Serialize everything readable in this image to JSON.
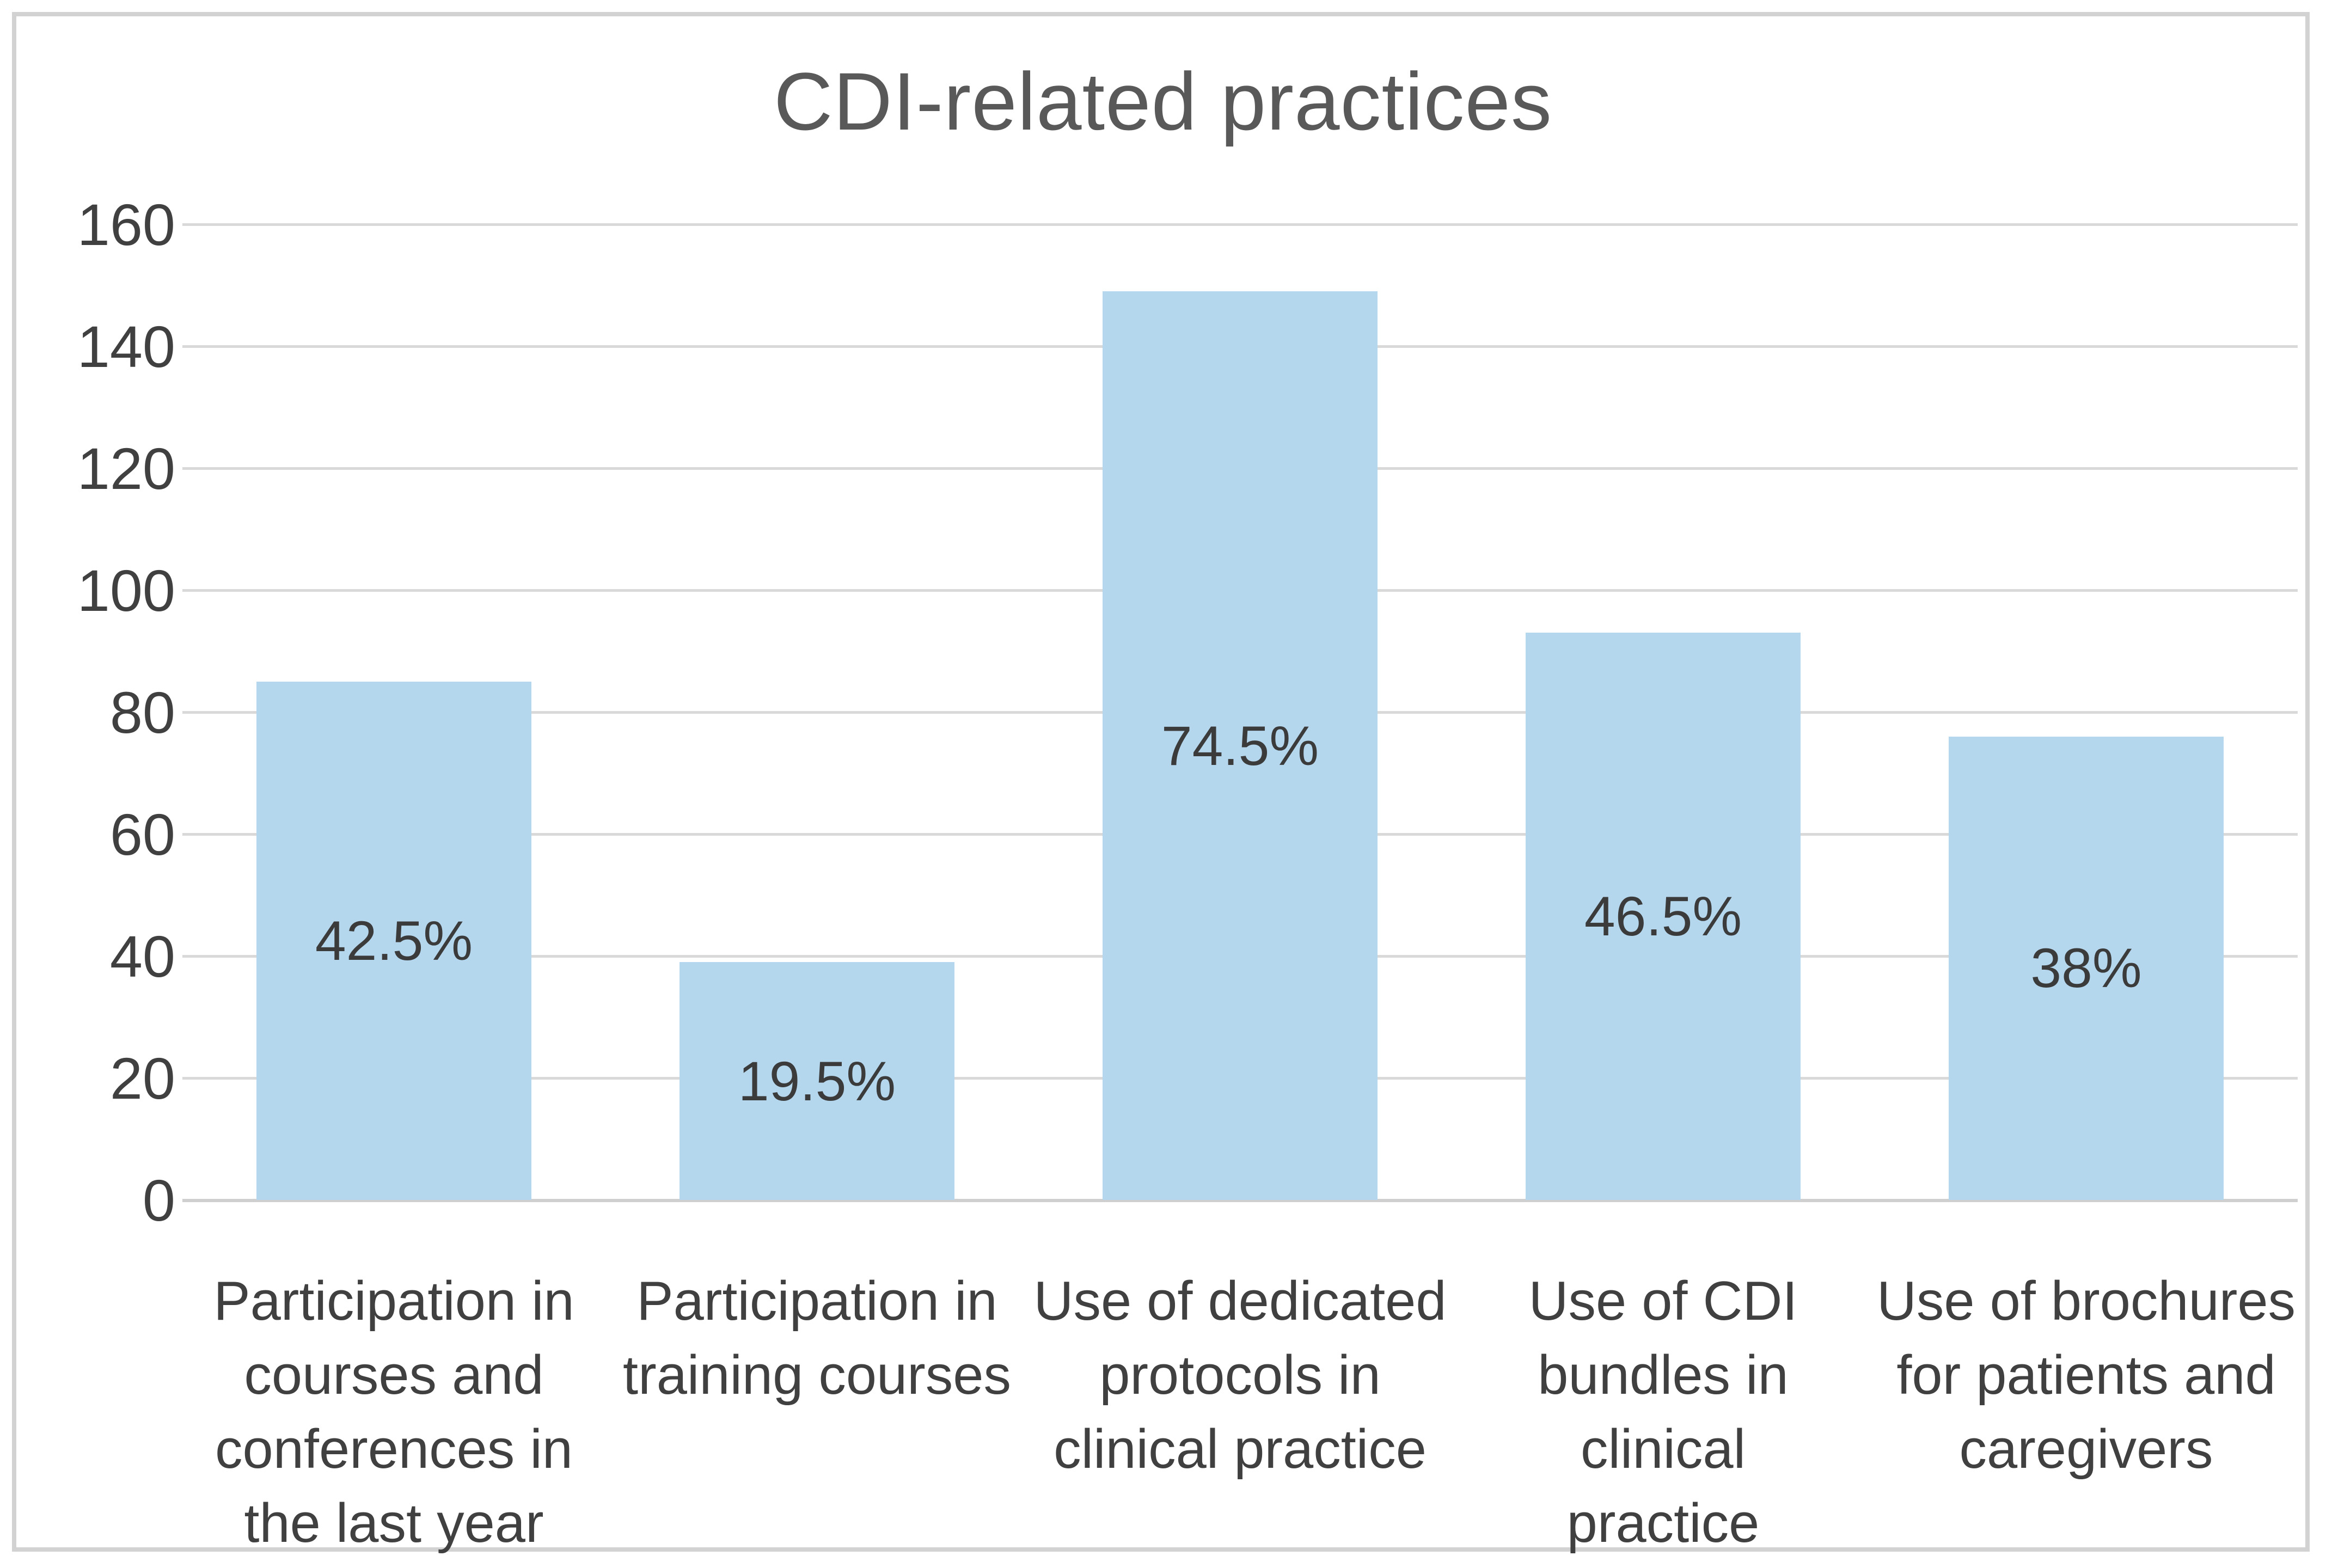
{
  "chart_data": {
    "type": "bar",
    "title": "CDI-related practices",
    "categories": [
      "Participation in courses and conferences in the last year",
      "Participation in training courses",
      "Use of dedicated protocols in clinical practice",
      "Use of CDI bundles in clinical practice",
      "Use of brochures for patients and caregivers"
    ],
    "category_lines": [
      [
        "Participation in",
        "courses and",
        "conferences in",
        "the last year"
      ],
      [
        "Participation in",
        "training courses"
      ],
      [
        "Use of dedicated",
        "protocols in",
        "clinical practice"
      ],
      [
        "Use of CDI",
        "bundles in clinical",
        "practice"
      ],
      [
        "Use of brochures",
        "for patients and",
        "caregivers"
      ]
    ],
    "values": [
      85,
      39,
      149,
      93,
      76
    ],
    "data_labels": [
      "42.5%",
      "19.5%",
      "74.5%",
      "46.5%",
      "38%"
    ],
    "ylabel": "",
    "xlabel": "",
    "ylim": [
      0,
      160
    ],
    "ytick_step": 20,
    "ytick_labels": [
      "0",
      "20",
      "40",
      "60",
      "80",
      "100",
      "120",
      "140",
      "160"
    ],
    "grid": true,
    "legend": "none",
    "colors": {
      "bar_fill": "#b4d7ee",
      "gridline": "#d9d9d9",
      "axis_line": "#cfcfcf",
      "title_text": "#595959",
      "tick_text": "#404040",
      "category_text": "#404040",
      "data_label_text": "#3b3b3b",
      "frame_border": "#d2d2d2",
      "background": "#ffffff"
    }
  }
}
